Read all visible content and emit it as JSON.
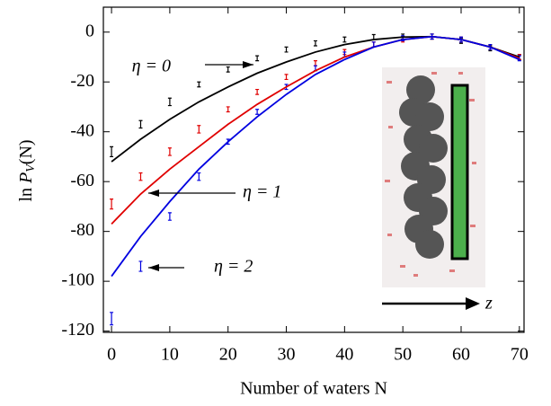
{
  "chart_data": {
    "type": "line_errorbar",
    "xlabel": "Number of waters N",
    "ylabel": [
      "ln ",
      "P",
      "V",
      "(N)"
    ],
    "xlim": [
      -1.4,
      70.8
    ],
    "ylim": [
      -120.5,
      10
    ],
    "xticks": [
      0,
      10,
      20,
      30,
      40,
      50,
      60,
      70
    ],
    "yticks": [
      0,
      -20,
      -40,
      -60,
      -80,
      -100,
      -120
    ],
    "series": [
      {
        "color": "#000000",
        "x": [
          0,
          5,
          10,
          15,
          20,
          25,
          30,
          35,
          40,
          45,
          50,
          55,
          60,
          65,
          70
        ],
        "values": [
          -52,
          -43,
          -35,
          -28,
          -22,
          -16.5,
          -12,
          -8,
          -5,
          -3,
          -2,
          -1.8,
          -3,
          -6,
          -10
        ]
      },
      {
        "color": "#e00000",
        "x": [
          0,
          5,
          10,
          15,
          20,
          25,
          30,
          35,
          40,
          45,
          50,
          55,
          60,
          65,
          70
        ],
        "values": [
          -77,
          -65,
          -55,
          -46,
          -37,
          -29,
          -22,
          -15.5,
          -10,
          -6,
          -3,
          -1.8,
          -3,
          -6,
          -10.5
        ]
      },
      {
        "color": "#0000e0",
        "x": [
          0,
          5,
          10,
          15,
          20,
          25,
          30,
          35,
          40,
          45,
          50,
          55,
          60,
          65,
          70
        ],
        "values": [
          -98,
          -82,
          -68,
          -55,
          -44,
          -34,
          -25,
          -17,
          -11,
          -6,
          -3,
          -1.8,
          -3,
          -6,
          -11
        ]
      }
    ],
    "errorbars": [
      {
        "color": "#000000",
        "x": [
          0,
          5,
          10,
          15,
          20,
          25,
          30,
          35,
          40,
          45,
          50,
          55,
          60,
          65,
          70
        ],
        "values": [
          -48,
          -37,
          -28,
          -21,
          -15,
          -10.5,
          -7,
          -4.5,
          -3,
          -2,
          -1.8,
          -1.8,
          -3.5,
          -6.5,
          -10
        ],
        "errors": [
          2,
          1.5,
          1.5,
          1,
          1,
          1,
          1,
          1,
          1,
          1,
          1,
          1,
          1,
          1,
          1
        ]
      },
      {
        "color": "#e00000",
        "x": [
          0,
          5,
          10,
          15,
          20,
          25,
          30,
          35,
          40,
          45,
          50,
          55,
          60,
          65,
          70
        ],
        "values": [
          -69,
          -58,
          -48,
          -39,
          -31,
          -24,
          -18,
          -12.5,
          -8,
          -5,
          -3,
          -1.8,
          -3,
          -6,
          -10
        ],
        "errors": [
          2,
          1.5,
          1.5,
          1.5,
          1,
          1,
          1,
          1,
          1,
          1,
          1,
          1,
          1,
          1,
          1
        ]
      },
      {
        "color": "#0000e0",
        "x": [
          0,
          5,
          10,
          15,
          20,
          25,
          30,
          35,
          40,
          45,
          50,
          55,
          60,
          65,
          70
        ],
        "values": [
          -115,
          -94,
          -74,
          -58,
          -44,
          -32,
          -22,
          -14.5,
          -9,
          -5,
          -2.5,
          -1.8,
          -3,
          -6,
          -10.5
        ],
        "errors": [
          2.5,
          2,
          1.5,
          1.5,
          1,
          1,
          1,
          1,
          1,
          1,
          1,
          1,
          1,
          1,
          1
        ]
      }
    ],
    "annotations": [
      "η = 0",
      "η = 1",
      "η = 2"
    ],
    "inset_label": "z"
  }
}
